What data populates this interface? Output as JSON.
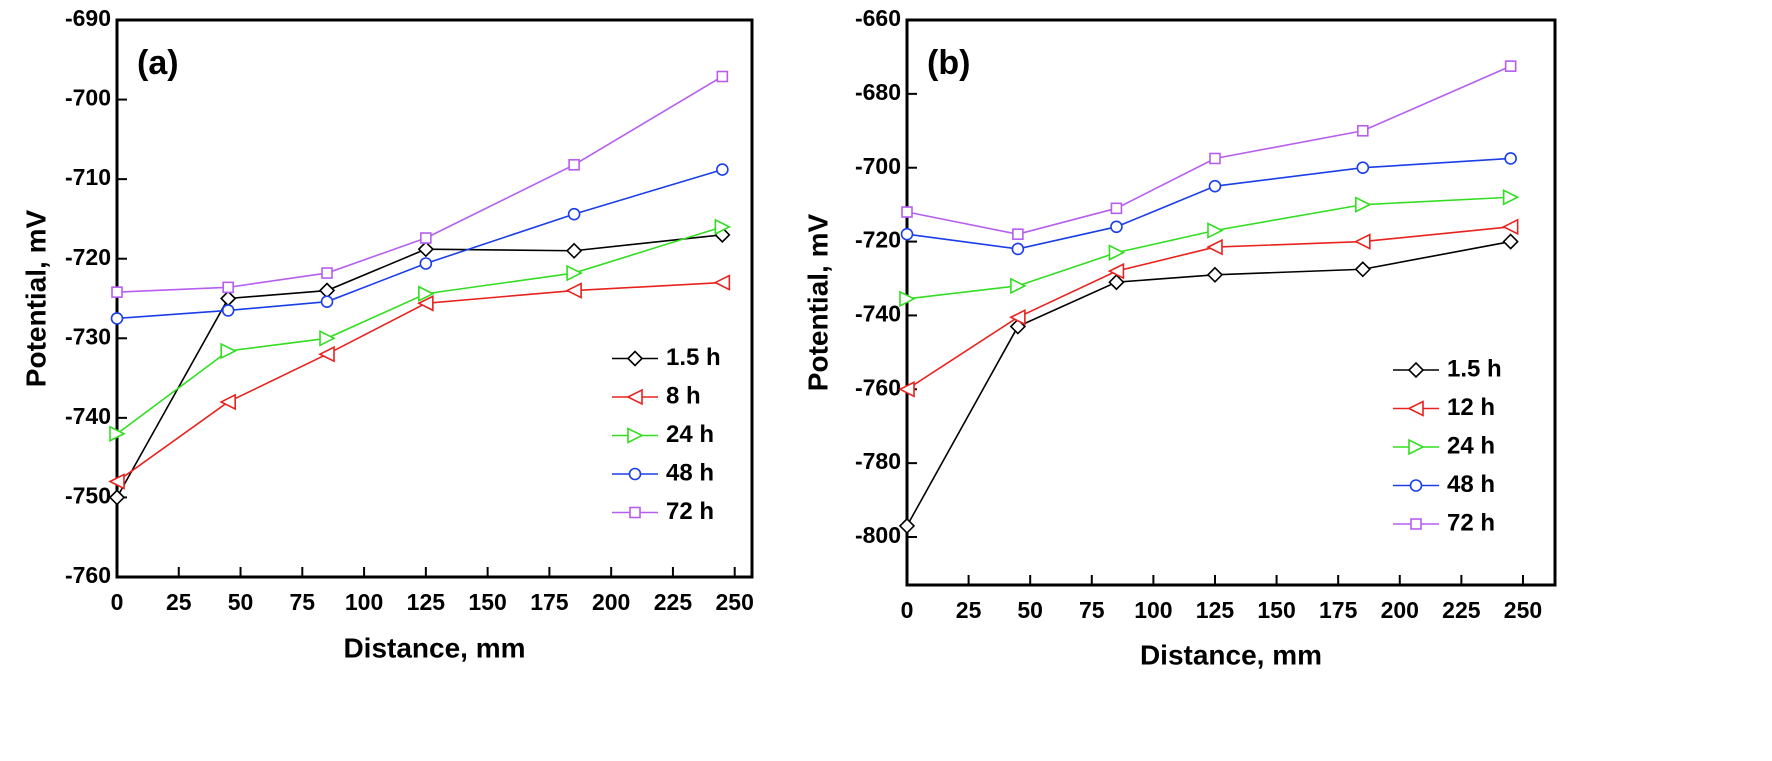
{
  "chart_data": [
    {
      "type": "line",
      "title": "(a)",
      "xlabel": "Distance,  mm",
      "ylabel": "Potential,  mV",
      "x": [
        0,
        45,
        85,
        125,
        185,
        245
      ],
      "xlim": [
        0,
        257
      ],
      "xticks": [
        0,
        25,
        50,
        75,
        100,
        125,
        150,
        175,
        200,
        225,
        250
      ],
      "ylim": [
        -760,
        -690
      ],
      "yticks": [
        -760,
        -750,
        -740,
        -730,
        -720,
        -710,
        -700,
        -690
      ],
      "legend": "center right",
      "series": [
        {
          "name": "1.5 h",
          "color": "#000000",
          "marker": "diamond",
          "values": [
            -750,
            -725,
            -724,
            -718.8,
            -719,
            -717
          ]
        },
        {
          "name": "8 h",
          "color": "#e8231e",
          "marker": "triangle-left",
          "values": [
            -748,
            -738,
            -732,
            -725.6,
            -724,
            -723
          ]
        },
        {
          "name": "24 h",
          "color": "#33dd22",
          "marker": "triangle-right",
          "values": [
            -742,
            -731.6,
            -730,
            -724.4,
            -721.8,
            -716
          ]
        },
        {
          "name": "48 h",
          "color": "#1a3ee8",
          "marker": "circle",
          "values": [
            -727.5,
            -726.5,
            -725.4,
            -720.6,
            -714.4,
            -708.8
          ]
        },
        {
          "name": "72 h",
          "color": "#b65ef0",
          "marker": "square",
          "values": [
            -724.2,
            -723.6,
            -721.8,
            -717.4,
            -708.2,
            -697.1
          ]
        }
      ]
    },
    {
      "type": "line",
      "title": "(b)",
      "xlabel": "Distance,  mm",
      "ylabel": "Potential,  mV",
      "x": [
        0,
        45,
        85,
        125,
        185,
        245
      ],
      "xlim": [
        0,
        263
      ],
      "xticks": [
        0,
        25,
        50,
        75,
        100,
        125,
        150,
        175,
        200,
        225,
        250
      ],
      "ylim": [
        -813,
        -660
      ],
      "yticks": [
        -800,
        -780,
        -760,
        -740,
        -720,
        -700,
        -680,
        -660
      ],
      "legend": "lower right",
      "series": [
        {
          "name": "1.5 h",
          "color": "#000000",
          "marker": "diamond",
          "values": [
            -797,
            -743,
            -731,
            -729,
            -727.5,
            -720
          ]
        },
        {
          "name": "12 h",
          "color": "#e8231e",
          "marker": "triangle-left",
          "values": [
            -760,
            -740.5,
            -728,
            -721.5,
            -720,
            -716
          ]
        },
        {
          "name": "24 h",
          "color": "#33dd22",
          "marker": "triangle-right",
          "values": [
            -735.5,
            -732,
            -723,
            -717,
            -710,
            -708
          ]
        },
        {
          "name": "48 h",
          "color": "#1a3ee8",
          "marker": "circle",
          "values": [
            -718,
            -722,
            -716,
            -705,
            -700,
            -697.5
          ]
        },
        {
          "name": "72 h",
          "color": "#b65ef0",
          "marker": "square",
          "values": [
            -712,
            -718,
            -711,
            -697.5,
            -690,
            -672.5
          ]
        }
      ]
    }
  ]
}
